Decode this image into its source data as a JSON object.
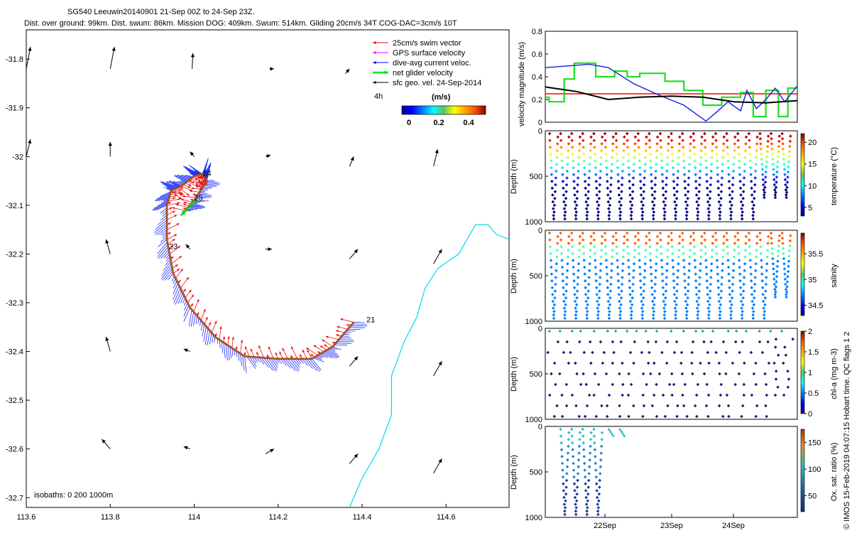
{
  "title": {
    "line1": "SG540 Leeuwin20140901 21-Sep 00Z to 24-Sep 23Z.",
    "line2": "Dist. over ground: 99km. Dist. swum: 86km. Mission DOG: 409km. Swum: 514km. Gliding 20cm/s 34T COG-DAC=3cm/s 10T"
  },
  "map": {
    "xticks": [
      "113.6",
      "113.8",
      "114",
      "114.2",
      "114.4",
      "114.6"
    ],
    "yticks": [
      "-31.8",
      "-31.9",
      "-32",
      "-32.1",
      "-32.2",
      "-32.3",
      "-32.4",
      "-32.5",
      "-32.6",
      "-32.7"
    ],
    "xlim": [
      113.6,
      114.75
    ],
    "ylim": [
      -32.72,
      -31.74
    ],
    "legend": [
      {
        "label": "25cm/s swim vector",
        "color": "#ff0000"
      },
      {
        "label": "GPS surface velocity",
        "color": "#ff00ff"
      },
      {
        "label": "dive-avg current veloc.",
        "color": "#0000ff"
      },
      {
        "label": "net glider velocity",
        "color": "#00ee00"
      },
      {
        "label": "sfc geo. vel. 24-Sep-2014",
        "color": "#000000"
      }
    ],
    "interval_label": "4h",
    "colorbar": {
      "title": "(m/s)",
      "ticks": [
        "0",
        "0.2",
        "0.4"
      ]
    },
    "isobaths": "isobaths: 0   200  1000m",
    "day_labels": [
      {
        "text": "21",
        "lon": 114.41,
        "lat": -32.34
      },
      {
        "text": "23",
        "lon": 113.94,
        "lat": -32.19
      },
      {
        "text": "24",
        "lon": 114.02,
        "lat": -32.04
      },
      {
        "text": "25",
        "lon": 114.0,
        "lat": -32.09
      }
    ],
    "track": [
      [
        114.38,
        -32.34
      ],
      [
        114.33,
        -32.39
      ],
      [
        114.28,
        -32.415
      ],
      [
        114.2,
        -32.415
      ],
      [
        114.12,
        -32.41
      ],
      [
        114.05,
        -32.37
      ],
      [
        113.99,
        -32.31
      ],
      [
        113.95,
        -32.24
      ],
      [
        113.935,
        -32.17
      ],
      [
        113.935,
        -32.1
      ],
      [
        113.945,
        -32.07
      ],
      [
        113.97,
        -32.06
      ],
      [
        114.0,
        -32.04
      ],
      [
        114.02,
        -32.035
      ],
      [
        114.03,
        -32.05
      ],
      [
        114.0,
        -32.09
      ],
      [
        113.975,
        -32.115
      ]
    ],
    "coast": [
      [
        114.37,
        -32.72
      ],
      [
        114.4,
        -32.66
      ],
      [
        114.44,
        -32.6
      ],
      [
        114.47,
        -32.53
      ],
      [
        114.47,
        -32.45
      ],
      [
        114.5,
        -32.38
      ],
      [
        114.53,
        -32.33
      ],
      [
        114.55,
        -32.27
      ],
      [
        114.58,
        -32.23
      ],
      [
        114.63,
        -32.2
      ],
      [
        114.65,
        -32.17
      ],
      [
        114.67,
        -32.14
      ],
      [
        114.7,
        -32.14
      ],
      [
        114.72,
        -32.16
      ],
      [
        114.75,
        -32.17
      ]
    ],
    "geo_arrows": [
      [
        113.6,
        -31.82,
        0.01,
        0.045
      ],
      [
        113.8,
        -31.82,
        0.01,
        0.045
      ],
      [
        113.995,
        -31.82,
        0.002,
        0.032
      ],
      [
        114.18,
        -31.82,
        0.01,
        0
      ],
      [
        114.36,
        -31.83,
        0.01,
        0.01
      ],
      [
        113.6,
        -32.0,
        0.01,
        0.035
      ],
      [
        113.8,
        -32.0,
        0,
        0.03
      ],
      [
        114.0,
        -32.0,
        -0.01,
        0.01
      ],
      [
        114.17,
        -32.0,
        0.012,
        0.003
      ],
      [
        114.37,
        -32.02,
        0.01,
        0.02
      ],
      [
        114.57,
        -32.02,
        0.01,
        0.035
      ],
      [
        113.8,
        -32.2,
        -0.01,
        0.03
      ],
      [
        113.99,
        -32.19,
        -0.01,
        0.01
      ],
      [
        114.17,
        -32.19,
        0.015,
        0
      ],
      [
        114.37,
        -32.21,
        0.02,
        0.02
      ],
      [
        114.57,
        -32.22,
        0.02,
        0.03
      ],
      [
        113.8,
        -32.4,
        -0.01,
        0.03
      ],
      [
        113.99,
        -32.4,
        -0.015,
        0.005
      ],
      [
        114.37,
        -32.43,
        0.02,
        0.02
      ],
      [
        114.57,
        -32.45,
        0.02,
        0.03
      ],
      [
        113.8,
        -32.6,
        -0.02,
        0.02
      ],
      [
        113.99,
        -32.6,
        -0.015,
        0.005
      ],
      [
        114.17,
        -32.61,
        0.02,
        0.01
      ],
      [
        114.37,
        -32.63,
        0.02,
        0.02
      ],
      [
        114.57,
        -32.65,
        0.02,
        0.03
      ]
    ]
  },
  "velocity_panel": {
    "ylabel": "velocity magnitude (m/s)",
    "yticks": [
      "0",
      "0.2",
      "0.4",
      "0.6",
      "0.8"
    ],
    "ylim": [
      0,
      0.8
    ],
    "xlim": [
      0,
      4
    ],
    "red_level": 0.25,
    "green": [
      [
        0,
        0.22
      ],
      [
        0.06,
        0.22
      ],
      [
        0.06,
        0.18
      ],
      [
        0.3,
        0.18
      ],
      [
        0.3,
        0.38
      ],
      [
        0.46,
        0.38
      ],
      [
        0.46,
        0.52
      ],
      [
        0.8,
        0.52
      ],
      [
        0.8,
        0.4
      ],
      [
        1.1,
        0.4
      ],
      [
        1.1,
        0.45
      ],
      [
        1.3,
        0.45
      ],
      [
        1.3,
        0.4
      ],
      [
        1.5,
        0.4
      ],
      [
        1.5,
        0.43
      ],
      [
        1.9,
        0.43
      ],
      [
        1.9,
        0.36
      ],
      [
        2.2,
        0.36
      ],
      [
        2.2,
        0.28
      ],
      [
        2.5,
        0.28
      ],
      [
        2.5,
        0.15
      ],
      [
        2.8,
        0.15
      ],
      [
        2.8,
        0.22
      ],
      [
        3.1,
        0.22
      ],
      [
        3.1,
        0.26
      ],
      [
        3.3,
        0.26
      ],
      [
        3.3,
        0.05
      ],
      [
        3.5,
        0.05
      ],
      [
        3.5,
        0.28
      ],
      [
        3.7,
        0.28
      ],
      [
        3.7,
        0.05
      ],
      [
        3.85,
        0.05
      ],
      [
        3.85,
        0.3
      ],
      [
        4,
        0.3
      ]
    ],
    "blue": [
      [
        0,
        0.48
      ],
      [
        0.7,
        0.51
      ],
      [
        1.0,
        0.48
      ],
      [
        1.4,
        0.34
      ],
      [
        1.8,
        0.24
      ],
      [
        2.2,
        0.15
      ],
      [
        2.55,
        0.01
      ],
      [
        2.7,
        0.08
      ],
      [
        2.9,
        0.18
      ],
      [
        3.1,
        0.1
      ],
      [
        3.2,
        0.28
      ],
      [
        3.35,
        0.12
      ],
      [
        3.5,
        0.2
      ],
      [
        3.65,
        0.3
      ],
      [
        3.8,
        0.18
      ],
      [
        4,
        0.32
      ]
    ],
    "black": [
      [
        0,
        0.31
      ],
      [
        0.5,
        0.27
      ],
      [
        1.0,
        0.2
      ],
      [
        1.5,
        0.22
      ],
      [
        2.0,
        0.23
      ],
      [
        2.5,
        0.22
      ],
      [
        3.0,
        0.18
      ],
      [
        3.5,
        0.17
      ],
      [
        4,
        0.19
      ]
    ]
  },
  "depth_panels": [
    {
      "ylabel": "Depth (m)",
      "yticks": [
        "0",
        "500",
        "1000"
      ],
      "cbar_label": "temperature (°C)",
      "cbar_ticks": [
        "5",
        "10",
        "15",
        "20"
      ],
      "cbar_range": [
        3,
        22
      ]
    },
    {
      "ylabel": "Depth (m)",
      "yticks": [
        "0",
        "500",
        "1000"
      ],
      "cbar_label": "salinity",
      "cbar_ticks": [
        "34.5",
        "35",
        "35.5"
      ],
      "cbar_range": [
        34.3,
        35.9
      ]
    },
    {
      "ylabel": "Depth (m)",
      "yticks": [
        "0",
        "500",
        "1000"
      ],
      "cbar_label": "chl-a (mg m-3)",
      "cbar_ticks": [
        "0",
        "0.5",
        "1",
        "1.5",
        "2"
      ],
      "cbar_range": [
        0,
        2
      ]
    },
    {
      "ylabel": "Depth (m)",
      "yticks": [
        "0",
        "500",
        "1000"
      ],
      "cbar_label": "Ox. sat. ratio (%)",
      "cbar_ticks": [
        "50",
        "100",
        "150"
      ],
      "cbar_range": [
        20,
        175
      ]
    }
  ],
  "time_ticks": [
    "22Sep",
    "23Sep",
    "24Sep"
  ],
  "credit": "© IMOS 15-Feb-2019 04:07:15 Hobart time. QC flags 1  2"
}
